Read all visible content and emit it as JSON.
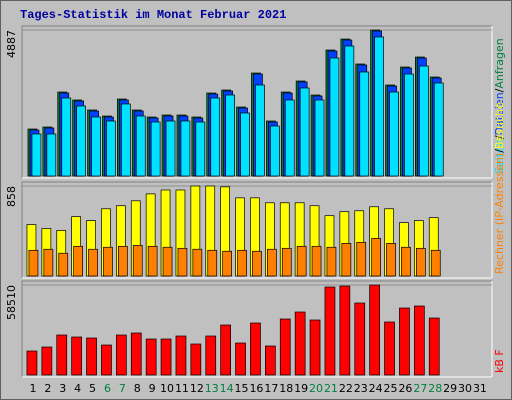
{
  "chart_data": [
    {
      "type": "bar",
      "title": "Tages-Statistik im Monat Februar 2021",
      "ylim": [
        0,
        4887
      ],
      "yticks": [
        4887
      ],
      "legend_separator": "/",
      "series": [
        {
          "name": "Anfragen",
          "color": "#008040",
          "values": [
            1573,
            1640,
            2811,
            2544,
            2209,
            2008,
            2577,
            2209,
            1975,
            2042,
            2042,
            1975,
            2778,
            2878,
            2309,
            3447,
            1841,
            2811,
            3180,
            2711,
            4217,
            4585,
            3749,
            4887,
            3046,
            3648,
            3983,
            3314,
            0,
            0,
            0
          ]
        },
        {
          "name": "Dateien",
          "color": "#0040ff",
          "values": [
            1540,
            1607,
            2778,
            2511,
            2176,
            1975,
            2544,
            2176,
            1942,
            2009,
            2009,
            1942,
            2745,
            2845,
            2276,
            3414,
            1808,
            2778,
            3147,
            2678,
            4184,
            4552,
            3716,
            4854,
            3013,
            3615,
            3950,
            3281,
            0,
            0,
            0
          ]
        },
        {
          "name": "Seiten",
          "color": "#00e0ff",
          "values": [
            1406,
            1406,
            2611,
            2343,
            1975,
            1841,
            2410,
            2008,
            1807,
            1841,
            1841,
            1807,
            2611,
            2711,
            2109,
            3046,
            1673,
            2544,
            2945,
            2544,
            3950,
            4351,
            3481,
            4653,
            2811,
            3414,
            3682,
            3113,
            0,
            0,
            0
          ]
        }
      ]
    },
    {
      "type": "bar",
      "ylim": [
        0,
        858
      ],
      "yticks": [
        858
      ],
      "legend_separator": "/",
      "series": [
        {
          "name": "Besuche",
          "color": "#ffff00",
          "values": [
            490,
            453,
            434,
            566,
            528,
            641,
            670,
            717,
            783,
            820,
            820,
            858,
            858,
            850,
            745,
            745,
            698,
            698,
            698,
            670,
            575,
            613,
            622,
            660,
            641,
            509,
            528,
            556,
            0,
            0,
            0
          ]
        },
        {
          "name": "Rechner (IP-Adressen)",
          "color": "#ff8000",
          "values": [
            245,
            255,
            217,
            283,
            255,
            274,
            283,
            292,
            283,
            274,
            264,
            255,
            245,
            236,
            245,
            236,
            255,
            264,
            283,
            283,
            274,
            311,
            321,
            358,
            311,
            274,
            264,
            245,
            0,
            0,
            0
          ]
        }
      ]
    },
    {
      "type": "bar",
      "ylim": [
        0,
        58510
      ],
      "yticks": [
        58510
      ],
      "categories": [
        "1",
        "2",
        "3",
        "4",
        "5",
        "6",
        "7",
        "8",
        "9",
        "10",
        "11",
        "12",
        "13",
        "14",
        "15",
        "16",
        "17",
        "18",
        "19",
        "20",
        "21",
        "22",
        "23",
        "24",
        "25",
        "26",
        "27",
        "28",
        "29",
        "30",
        "31"
      ],
      "weekend_indices": [
        5,
        6,
        12,
        13,
        19,
        20,
        26,
        27
      ],
      "weekend_color": "#008040",
      "series": [
        {
          "name": "kB F",
          "color": "#ff0000",
          "values": [
            15600,
            18200,
            26000,
            24700,
            24050,
            19500,
            26000,
            27300,
            23400,
            23400,
            25350,
            20150,
            25350,
            32500,
            20800,
            33800,
            18850,
            36400,
            40950,
            35750,
            57200,
            57850,
            46800,
            58510,
            34450,
            43550,
            44850,
            37050,
            0,
            0,
            0
          ]
        }
      ]
    }
  ]
}
